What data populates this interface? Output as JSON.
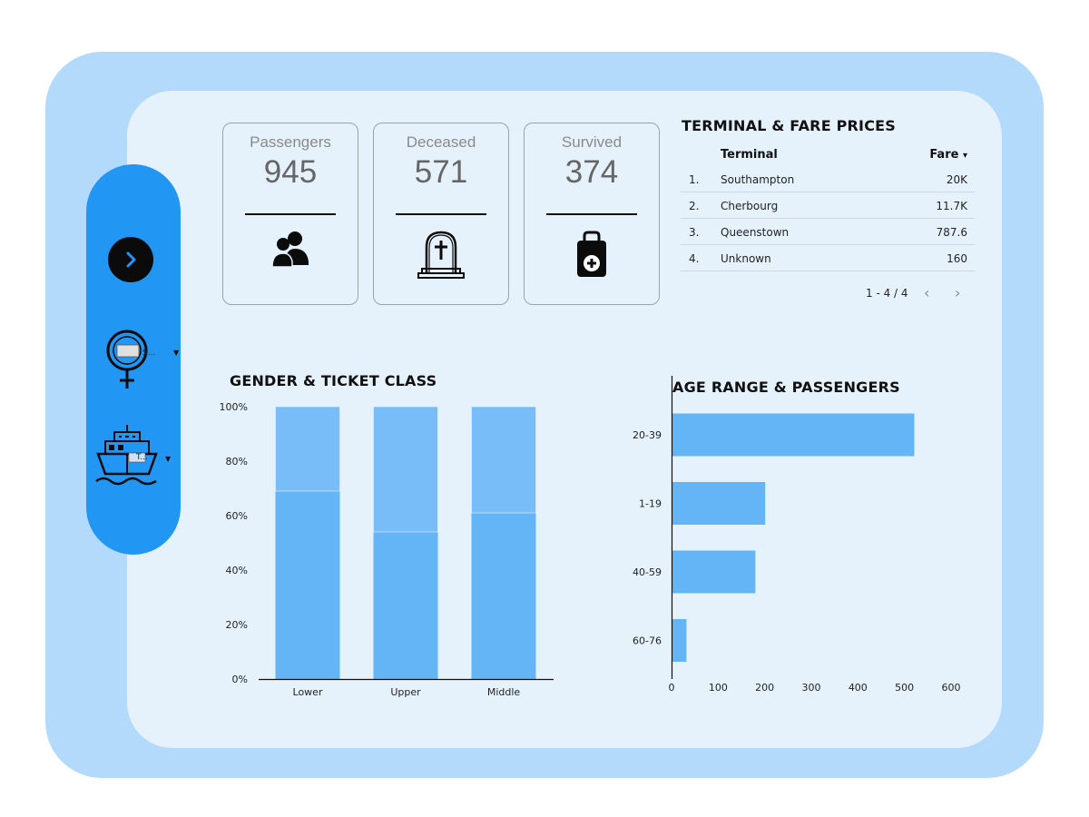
{
  "colors": {
    "outer_frame": "#b3dafa",
    "inner_panel": "#e5f2fc",
    "sidebar": "#2196f3",
    "bar_primary": "#64b5f6",
    "bar_secondary": "#78bdf7"
  },
  "sidebar": {
    "nav_icon": "chevron-right-icon",
    "filters": [
      {
        "icon": "female-symbol-icon",
        "text": "S..."
      },
      {
        "icon": "ship-icon",
        "text": "T..."
      }
    ]
  },
  "kpis": [
    {
      "label": "Passengers",
      "value": "945",
      "icon": "people-icon"
    },
    {
      "label": "Deceased",
      "value": "571",
      "icon": "tombstone-icon"
    },
    {
      "label": "Survived",
      "value": "374",
      "icon": "medical-bag-icon"
    }
  ],
  "fare_table": {
    "title": "TERMINAL & FARE PRICES",
    "columns": {
      "terminal": "Terminal",
      "fare": "Fare"
    },
    "sort_indicator": "▾",
    "rows": [
      {
        "index": "1.",
        "terminal": "Southampton",
        "fare": "20K"
      },
      {
        "index": "2.",
        "terminal": "Cherbourg",
        "fare": "11.7K"
      },
      {
        "index": "3.",
        "terminal": "Queenstown",
        "fare": "787.6"
      },
      {
        "index": "4.",
        "terminal": "Unknown",
        "fare": "160"
      }
    ],
    "pagination": {
      "range": "1 - 4 / 4",
      "prev": "‹",
      "next": "›"
    }
  },
  "chart_data": [
    {
      "type": "bar",
      "stacked": "100%",
      "title": "GENDER & TICKET CLASS",
      "categories": [
        "Lower",
        "Upper",
        "Middle"
      ],
      "series": [
        {
          "values": [
            69,
            54,
            61
          ]
        },
        {
          "values": [
            31,
            46,
            39
          ]
        }
      ],
      "ylim": [
        0,
        100
      ],
      "yticks": [
        "0%",
        "20%",
        "40%",
        "60%",
        "80%",
        "100%"
      ],
      "grid": false,
      "legend": "none"
    },
    {
      "type": "bar",
      "orientation": "horizontal",
      "title": "AGE RANGE & PASSENGERS",
      "categories": [
        "20-39",
        "1-19",
        "40-59",
        "60-76"
      ],
      "values": [
        521,
        201,
        180,
        32
      ],
      "xlim": [
        0,
        600
      ],
      "xticks": [
        "0",
        "100",
        "200",
        "300",
        "400",
        "500",
        "600"
      ],
      "grid": false,
      "legend": "none"
    }
  ]
}
